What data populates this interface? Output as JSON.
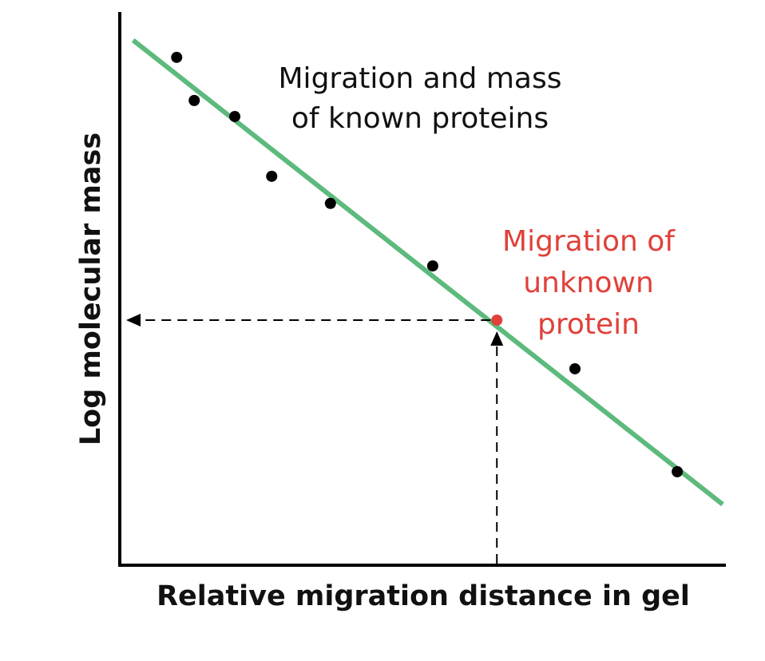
{
  "chart_data": {
    "type": "scatter",
    "title": "",
    "xlabel": "Relative migration distance in gel",
    "ylabel": "Log molecular mass",
    "xlim": [
      0,
      100
    ],
    "ylim": [
      0,
      100
    ],
    "grid": false,
    "tick_labels_shown": false,
    "series": [
      {
        "name": "Migration and mass of known proteins",
        "color": "#000000",
        "points": [
          [
            9.4,
            91.8
          ],
          [
            12.3,
            84.0
          ],
          [
            19.0,
            81.1
          ],
          [
            25.1,
            70.3
          ],
          [
            34.8,
            65.4
          ],
          [
            51.7,
            54.1
          ],
          [
            75.2,
            35.5
          ],
          [
            92.1,
            16.9
          ]
        ]
      },
      {
        "name": "Migration of unknown protein",
        "color": "#e0413a",
        "points": [
          [
            62.3,
            44.3
          ]
        ]
      }
    ],
    "fit_line": {
      "color": "#5dba7d",
      "x": [
        2.2,
        99.6
      ],
      "y": [
        94.9,
        11.0
      ]
    },
    "annotations": {
      "known": [
        "Migration and mass",
        "of known proteins"
      ],
      "unknown": [
        "Migration of",
        "unknown",
        "protein"
      ]
    }
  }
}
